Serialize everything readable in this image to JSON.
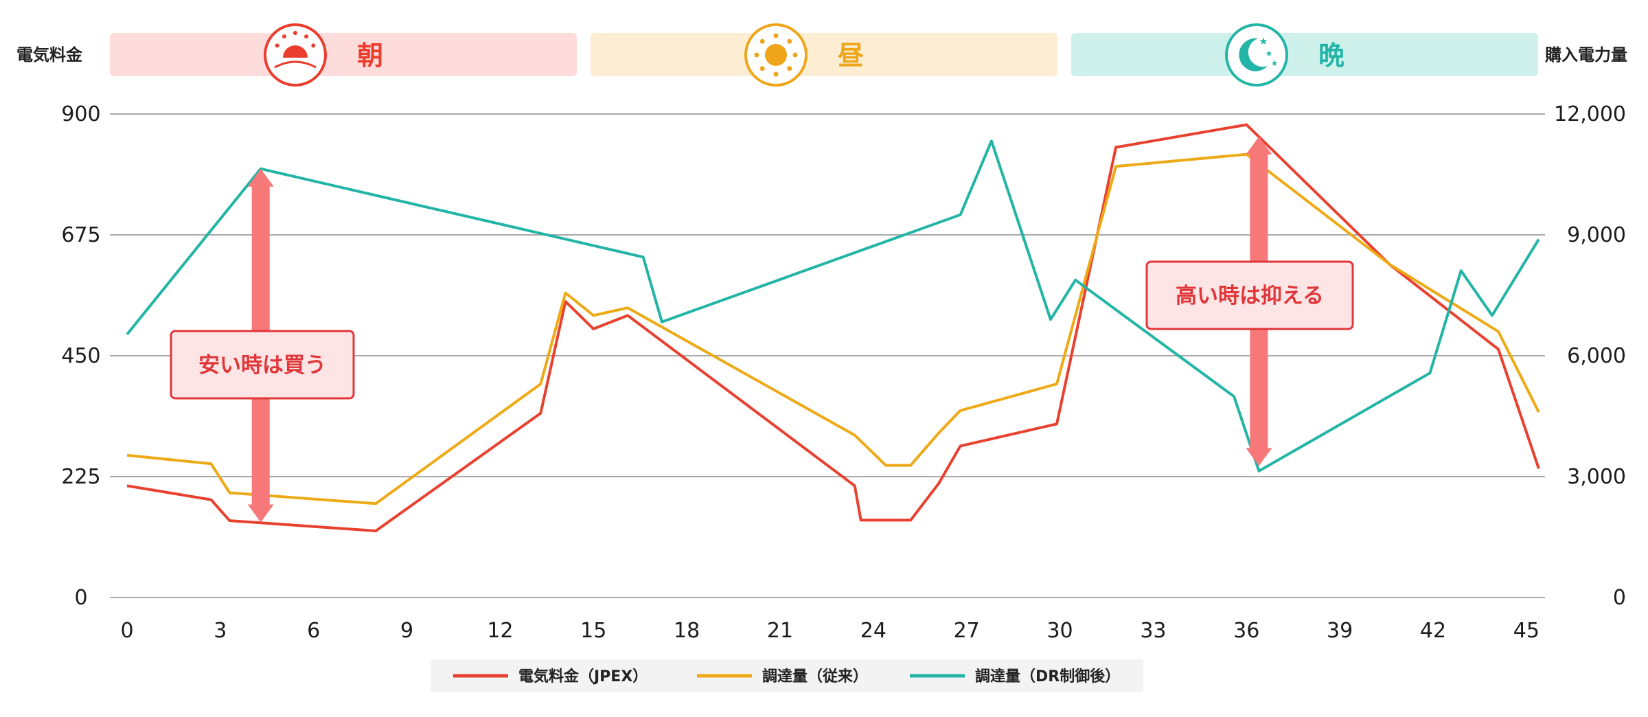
{
  "chart_data": {
    "type": "line",
    "title": "",
    "left_axis_label": "電気料金",
    "right_axis_label": "購入電力量",
    "x_ticks": [
      "0",
      "3",
      "6",
      "9",
      "12",
      "15",
      "18",
      "21",
      "24",
      "27",
      "30",
      "33",
      "36",
      "39",
      "42",
      "45"
    ],
    "xlim": [
      0,
      45.6
    ],
    "left_ylim": [
      0,
      900
    ],
    "left_ticks": [
      "0",
      "225",
      "450",
      "675",
      "900"
    ],
    "right_ylim": [
      0,
      12000
    ],
    "right_ticks": [
      "0",
      "3,000",
      "6,000",
      "9,000",
      "12,000"
    ],
    "grid": true,
    "legend_position": "bottom-center",
    "bands": [
      {
        "label": "朝",
        "icon": "sunrise-icon",
        "color": "#ea3d2e",
        "bg": "#ffdcdc"
      },
      {
        "label": "昼",
        "icon": "sun-icon",
        "color": "#eea51a",
        "bg": "#fdedd2"
      },
      {
        "label": "晩",
        "icon": "moon-stars-icon",
        "color": "#22b5a8",
        "bg": "#cff1ec"
      }
    ],
    "series": [
      {
        "name": "電気料金（JPEX）",
        "axis": "left",
        "color": "#e8412f",
        "points": [
          [
            0,
            208
          ],
          [
            2.7,
            182
          ],
          [
            3.3,
            143
          ],
          [
            8,
            124
          ],
          [
            13.3,
            343
          ],
          [
            14.1,
            551
          ],
          [
            15,
            500
          ],
          [
            16.1,
            525
          ],
          [
            23.4,
            208
          ],
          [
            23.6,
            144
          ],
          [
            25.2,
            144
          ],
          [
            26.1,
            212
          ],
          [
            26.8,
            282
          ],
          [
            29.9,
            323
          ],
          [
            31.8,
            838
          ],
          [
            36,
            880
          ],
          [
            40.6,
            620
          ],
          [
            44.1,
            462
          ],
          [
            45.4,
            240
          ]
        ]
      },
      {
        "name": "調達量（従来）",
        "axis": "right",
        "color": "#eeaa16",
        "points": [
          [
            0,
            3530
          ],
          [
            2.7,
            3320
          ],
          [
            3.3,
            2600
          ],
          [
            8,
            2330
          ],
          [
            13.3,
            5300
          ],
          [
            14.1,
            7560
          ],
          [
            15,
            7000
          ],
          [
            16.1,
            7190
          ],
          [
            23.4,
            4030
          ],
          [
            24.4,
            3280
          ],
          [
            25.2,
            3280
          ],
          [
            26.1,
            4080
          ],
          [
            26.8,
            4640
          ],
          [
            29.9,
            5300
          ],
          [
            31.8,
            10700
          ],
          [
            36,
            11000
          ],
          [
            40.6,
            8270
          ],
          [
            44.1,
            6600
          ],
          [
            45.4,
            4600
          ]
        ]
      },
      {
        "name": "調達量（DR制御後）",
        "axis": "right",
        "color": "#22b5a6",
        "points": [
          [
            0,
            6530
          ],
          [
            4.3,
            10640
          ],
          [
            16.6,
            8450
          ],
          [
            17.2,
            6840
          ],
          [
            26.8,
            9500
          ],
          [
            27.8,
            11330
          ],
          [
            29.7,
            6900
          ],
          [
            30.5,
            7880
          ],
          [
            35.6,
            4990
          ],
          [
            36.4,
            3140
          ],
          [
            41.9,
            5570
          ],
          [
            42.9,
            8110
          ],
          [
            43.9,
            7000
          ],
          [
            45.4,
            8890
          ]
        ]
      }
    ],
    "annotations": [
      {
        "text": "安い時は買う",
        "type": "double-arrow",
        "x": 4.3,
        "y_top_left": 798,
        "y_bottom_left": 140
      },
      {
        "text": "高い時は抑える",
        "type": "double-arrow",
        "x": 36.4,
        "y_top_left": 858,
        "y_bottom_left": 245
      }
    ]
  }
}
